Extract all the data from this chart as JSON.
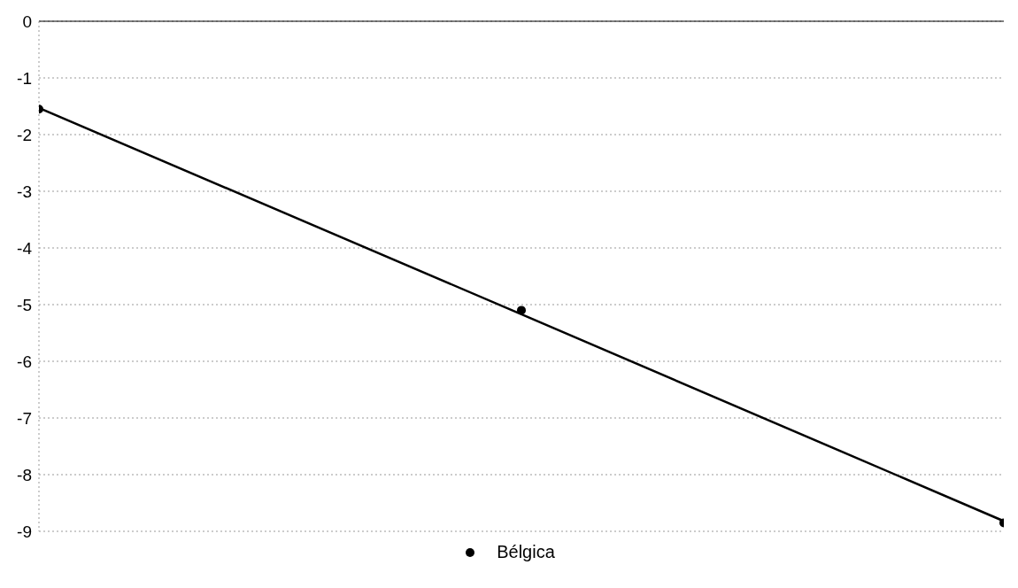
{
  "chart_data": {
    "type": "scatter",
    "categories": [
      null,
      null,
      null
    ],
    "series": [
      {
        "name": "Bélgica",
        "color": "#000000",
        "marker": "circle",
        "values": [
          -1.55,
          -5.1,
          -8.85
        ]
      },
      {
        "type": "line",
        "color": "#000000",
        "marker": "none",
        "values": [
          -1.53,
          -5.17,
          -8.82
        ]
      }
    ],
    "ylim": [
      -9,
      0
    ],
    "yticks": [
      0,
      -1,
      -2,
      -3,
      -4,
      -5,
      -6,
      -7,
      -8,
      -9
    ],
    "grid": "y",
    "legend": "bottom",
    "tick_labels": "y",
    "line_style": "solid"
  }
}
